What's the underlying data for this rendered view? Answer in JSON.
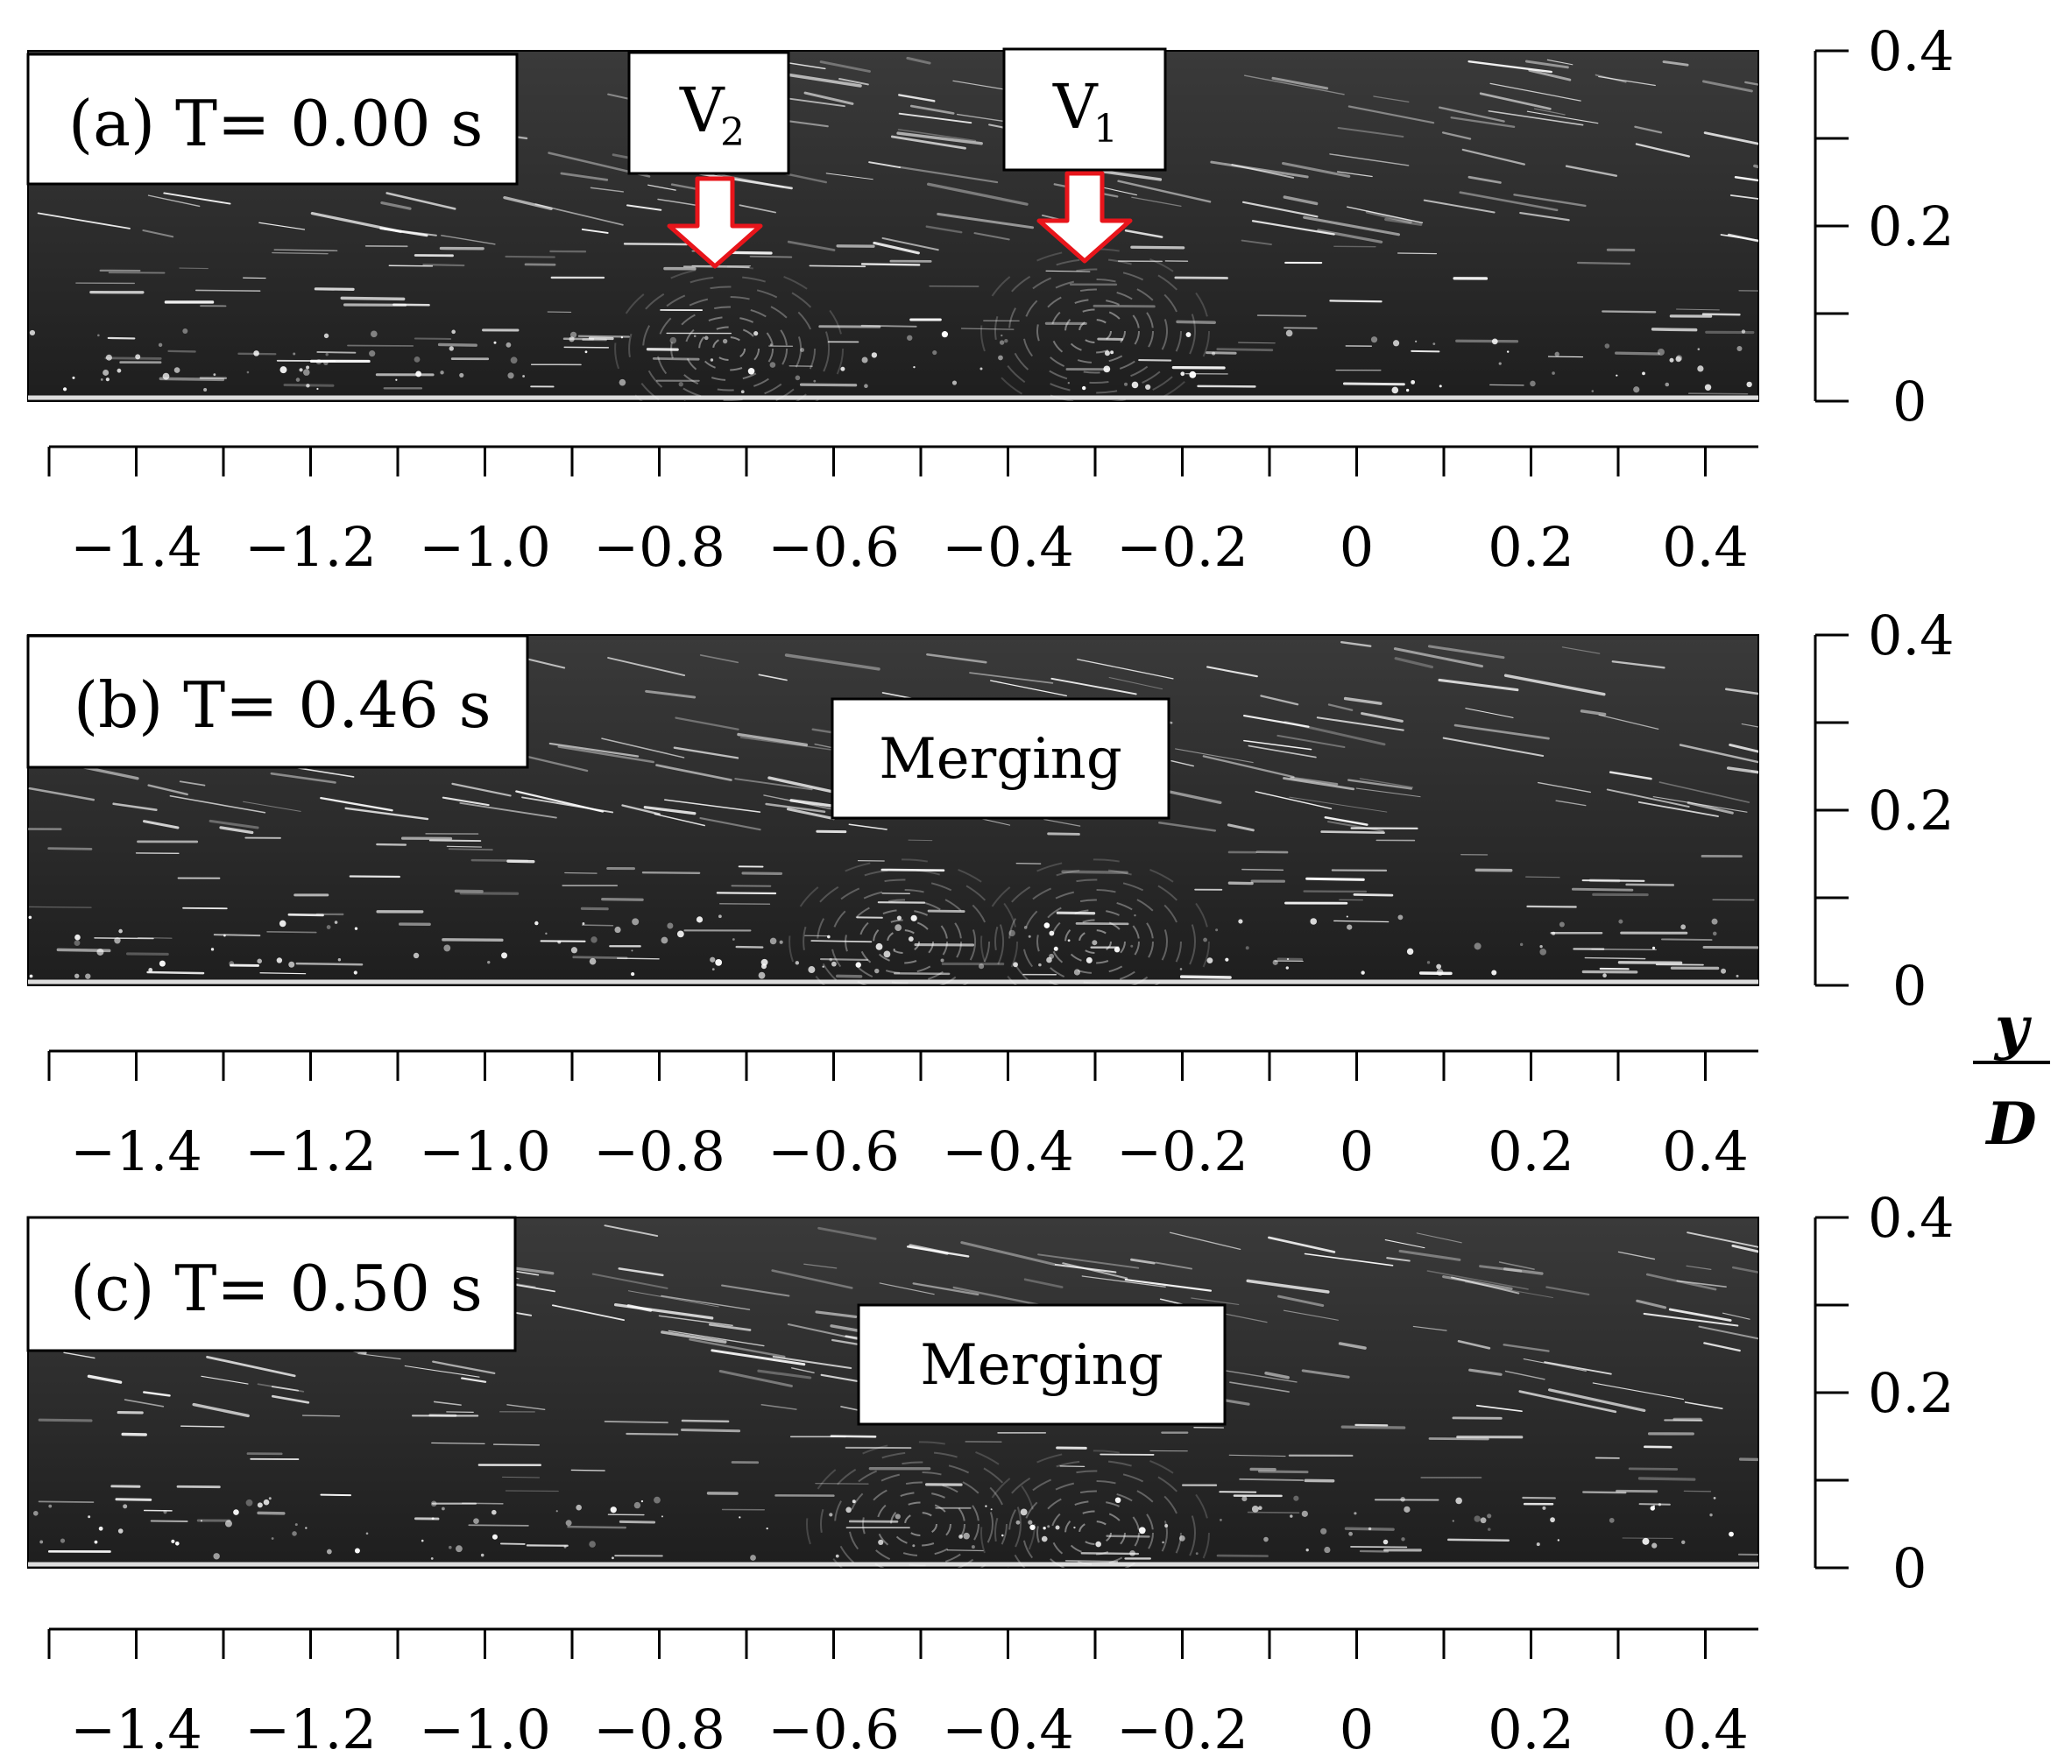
{
  "panels": [
    {
      "label": "(a) T= 0.00 s",
      "callouts": [
        {
          "type": "vortex-marker",
          "text_main": "V",
          "text_sub": "2"
        },
        {
          "type": "vortex-marker",
          "text_main": "V",
          "text_sub": "1"
        }
      ],
      "vortices": [
        {
          "x_over_D": -0.72,
          "y_over_D": 0.06
        },
        {
          "x_over_D": -0.3,
          "y_over_D": 0.08
        }
      ]
    },
    {
      "label": "(b) T= 0.46 s",
      "callouts": [
        {
          "type": "note",
          "text": "Merging"
        }
      ],
      "vortices": [
        {
          "x_over_D": -0.52,
          "y_over_D": 0.05
        },
        {
          "x_over_D": -0.3,
          "y_over_D": 0.05
        }
      ]
    },
    {
      "label": "(c) T= 0.50 s",
      "callouts": [
        {
          "type": "note",
          "text": "Merging"
        }
      ],
      "vortices": [
        {
          "x_over_D": -0.5,
          "y_over_D": 0.05
        },
        {
          "x_over_D": -0.3,
          "y_over_D": 0.04
        }
      ]
    }
  ],
  "x_axis": {
    "range": [
      -1.5,
      0.46
    ],
    "ticks": [
      "−1.4",
      "−1.2",
      "−1.0",
      "−0.8",
      "−0.6",
      "−0.4",
      "−0.2",
      "0",
      "0.2",
      "0.4"
    ]
  },
  "y_axis": {
    "range": [
      0,
      0.4
    ],
    "ticks": [
      "0.4",
      "0.2",
      "0"
    ],
    "label_numerator": "y",
    "label_denominator": "D"
  },
  "colors": {
    "arrow_fill": "#ffffff",
    "arrow_stroke": "#e8151b",
    "image_bg": "#2d2d2d",
    "streak": "#ffffff"
  }
}
